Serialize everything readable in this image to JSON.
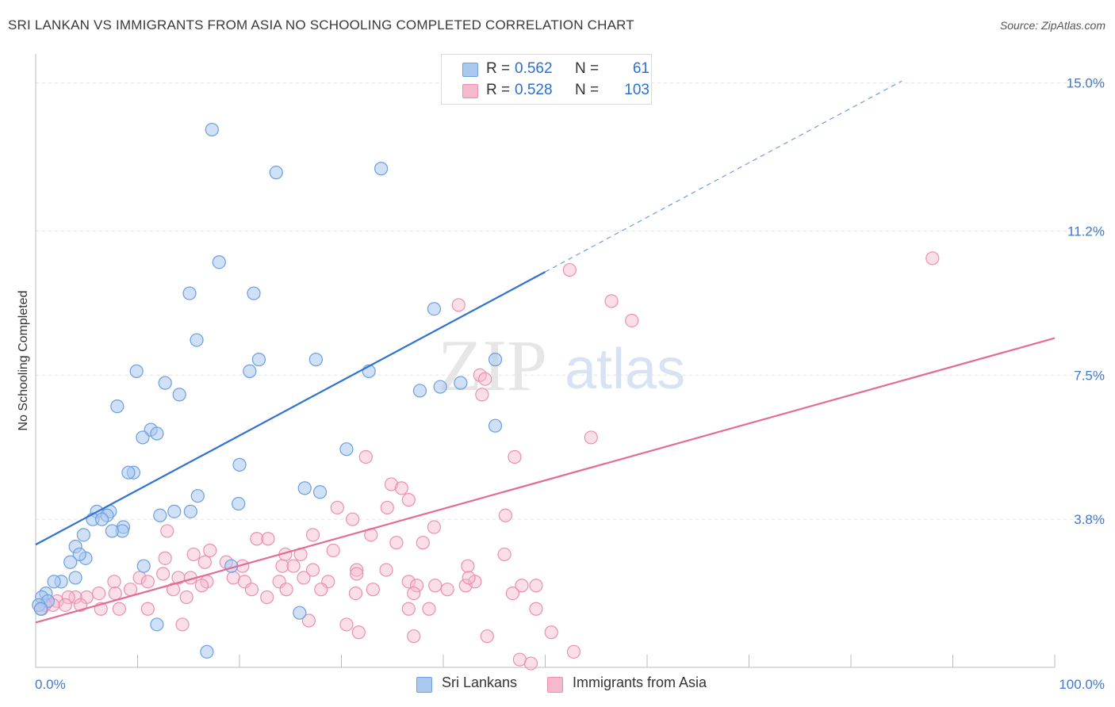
{
  "title": "SRI LANKAN VS IMMIGRANTS FROM ASIA NO SCHOOLING COMPLETED CORRELATION CHART",
  "source": "Source: ZipAtlas.com",
  "watermark": {
    "zip": "ZIP",
    "atlas": "atlas"
  },
  "colors": {
    "blue_fill": "#a9c8f0",
    "blue_stroke": "#6a9fe0",
    "blue_line": "#2f72d4",
    "pink_fill": "#f6b8cb",
    "pink_stroke": "#ec8fae",
    "pink_line": "#e46b97",
    "grid": "#e2e2e2",
    "axis_text": "#3f78cc"
  },
  "stats": [
    {
      "r_label": "R =",
      "r_value": "0.562",
      "n_label": "N =",
      "n_value": "61",
      "color": "#a9c8f0",
      "border": "#6a9fe0"
    },
    {
      "r_label": "R =",
      "r_value": "0.528",
      "n_label": "N =",
      "n_value": "103",
      "color": "#f6b8cb",
      "border": "#ec8fae"
    }
  ],
  "legend": [
    {
      "label": "Sri Lankans",
      "color": "#a9c8f0",
      "border": "#6a9fe0"
    },
    {
      "label": "Immigrants from Asia",
      "color": "#f6b8cb",
      "border": "#ec8fae"
    }
  ],
  "chart_data": {
    "type": "scatter",
    "title": "SRI LANKAN VS IMMIGRANTS FROM ASIA NO SCHOOLING COMPLETED CORRELATION CHART",
    "xlabel": "",
    "ylabel": "No Schooling Completed",
    "xlim": [
      0,
      100
    ],
    "ylim": [
      0,
      15.5
    ],
    "x_tick_labels": [
      "0.0%",
      "100.0%"
    ],
    "y_ticks": [
      3.8,
      7.5,
      11.2,
      15.0
    ],
    "y_tick_labels": [
      "3.8%",
      "7.5%",
      "11.2%",
      "15.0%"
    ],
    "grid": true,
    "legend_position": "bottom-center",
    "series": [
      {
        "name": "Sri Lankans",
        "points": [
          [
            17.3,
            13.8
          ],
          [
            23.6,
            12.7
          ],
          [
            33.9,
            12.8
          ],
          [
            18.0,
            10.4
          ],
          [
            15.1,
            9.6
          ],
          [
            21.4,
            9.6
          ],
          [
            39.1,
            9.2
          ],
          [
            15.8,
            8.4
          ],
          [
            21.9,
            7.9
          ],
          [
            27.5,
            7.9
          ],
          [
            45.1,
            7.9
          ],
          [
            21.0,
            7.6
          ],
          [
            9.9,
            7.6
          ],
          [
            32.7,
            7.6
          ],
          [
            12.7,
            7.3
          ],
          [
            41.7,
            7.3
          ],
          [
            39.7,
            7.2
          ],
          [
            14.1,
            7.0
          ],
          [
            37.7,
            7.1
          ],
          [
            8.0,
            6.7
          ],
          [
            11.3,
            6.1
          ],
          [
            11.9,
            6.0
          ],
          [
            10.5,
            5.9
          ],
          [
            45.1,
            6.2
          ],
          [
            30.5,
            5.6
          ],
          [
            20.0,
            5.2
          ],
          [
            9.6,
            5.0
          ],
          [
            9.1,
            5.0
          ],
          [
            26.4,
            4.6
          ],
          [
            27.9,
            4.5
          ],
          [
            15.9,
            4.4
          ],
          [
            19.9,
            4.2
          ],
          [
            13.6,
            4.0
          ],
          [
            15.2,
            4.0
          ],
          [
            12.2,
            3.9
          ],
          [
            7.3,
            4.0
          ],
          [
            6.0,
            4.0
          ],
          [
            7.0,
            3.9
          ],
          [
            5.6,
            3.8
          ],
          [
            6.5,
            3.8
          ],
          [
            8.6,
            3.6
          ],
          [
            8.5,
            3.5
          ],
          [
            7.5,
            3.5
          ],
          [
            4.7,
            3.4
          ],
          [
            3.9,
            3.1
          ],
          [
            4.9,
            2.8
          ],
          [
            4.3,
            2.9
          ],
          [
            3.4,
            2.7
          ],
          [
            10.6,
            2.6
          ],
          [
            19.2,
            2.6
          ],
          [
            3.9,
            2.3
          ],
          [
            2.5,
            2.2
          ],
          [
            1.8,
            2.2
          ],
          [
            1.0,
            1.9
          ],
          [
            0.6,
            1.8
          ],
          [
            1.2,
            1.7
          ],
          [
            0.3,
            1.6
          ],
          [
            0.5,
            1.5
          ],
          [
            25.9,
            1.4
          ],
          [
            11.9,
            1.1
          ],
          [
            16.8,
            0.4
          ]
        ]
      },
      {
        "name": "Immigrants from Asia",
        "points": [
          [
            88.0,
            10.5
          ],
          [
            52.4,
            10.2
          ],
          [
            56.5,
            9.4
          ],
          [
            58.5,
            8.9
          ],
          [
            41.5,
            9.3
          ],
          [
            43.6,
            7.5
          ],
          [
            44.1,
            7.4
          ],
          [
            43.8,
            7.0
          ],
          [
            54.5,
            5.9
          ],
          [
            32.4,
            5.4
          ],
          [
            47.0,
            5.4
          ],
          [
            34.9,
            4.7
          ],
          [
            35.9,
            4.6
          ],
          [
            36.6,
            4.3
          ],
          [
            29.6,
            4.1
          ],
          [
            34.5,
            4.1
          ],
          [
            46.1,
            3.9
          ],
          [
            31.1,
            3.8
          ],
          [
            39.1,
            3.6
          ],
          [
            12.9,
            3.5
          ],
          [
            27.2,
            3.4
          ],
          [
            32.9,
            3.4
          ],
          [
            21.7,
            3.3
          ],
          [
            22.8,
            3.3
          ],
          [
            35.4,
            3.2
          ],
          [
            38.0,
            3.2
          ],
          [
            17.1,
            3.0
          ],
          [
            29.2,
            3.0
          ],
          [
            15.5,
            2.9
          ],
          [
            24.5,
            2.9
          ],
          [
            46.0,
            2.9
          ],
          [
            26.0,
            2.9
          ],
          [
            12.7,
            2.8
          ],
          [
            16.6,
            2.7
          ],
          [
            18.7,
            2.7
          ],
          [
            20.3,
            2.6
          ],
          [
            24.2,
            2.6
          ],
          [
            25.3,
            2.6
          ],
          [
            27.2,
            2.5
          ],
          [
            42.4,
            2.6
          ],
          [
            31.5,
            2.5
          ],
          [
            34.4,
            2.5
          ],
          [
            31.5,
            2.4
          ],
          [
            10.2,
            2.3
          ],
          [
            12.5,
            2.4
          ],
          [
            15.2,
            2.3
          ],
          [
            19.4,
            2.3
          ],
          [
            26.3,
            2.3
          ],
          [
            7.7,
            2.2
          ],
          [
            11.0,
            2.2
          ],
          [
            14.0,
            2.3
          ],
          [
            16.8,
            2.2
          ],
          [
            20.5,
            2.2
          ],
          [
            23.9,
            2.2
          ],
          [
            28.7,
            2.2
          ],
          [
            36.6,
            2.2
          ],
          [
            39.2,
            2.1
          ],
          [
            42.2,
            2.1
          ],
          [
            43.1,
            2.2
          ],
          [
            9.3,
            2.0
          ],
          [
            13.5,
            2.0
          ],
          [
            16.3,
            2.1
          ],
          [
            21.2,
            2.0
          ],
          [
            24.6,
            2.0
          ],
          [
            28.0,
            2.0
          ],
          [
            33.1,
            2.0
          ],
          [
            37.4,
            2.1
          ],
          [
            40.4,
            2.0
          ],
          [
            42.5,
            2.3
          ],
          [
            47.7,
            2.1
          ],
          [
            49.1,
            2.1
          ],
          [
            6.2,
            1.9
          ],
          [
            5.0,
            1.8
          ],
          [
            3.9,
            1.8
          ],
          [
            7.8,
            1.9
          ],
          [
            14.8,
            1.8
          ],
          [
            22.7,
            1.8
          ],
          [
            31.4,
            1.9
          ],
          [
            37.1,
            1.9
          ],
          [
            46.8,
            1.9
          ],
          [
            2.1,
            1.7
          ],
          [
            3.2,
            1.8
          ],
          [
            1.7,
            1.6
          ],
          [
            2.9,
            1.6
          ],
          [
            4.4,
            1.6
          ],
          [
            0.9,
            1.6
          ],
          [
            0.6,
            1.5
          ],
          [
            6.4,
            1.5
          ],
          [
            8.2,
            1.5
          ],
          [
            11.0,
            1.5
          ],
          [
            36.6,
            1.5
          ],
          [
            38.6,
            1.5
          ],
          [
            49.1,
            1.5
          ],
          [
            26.8,
            1.2
          ],
          [
            30.5,
            1.1
          ],
          [
            14.4,
            1.1
          ],
          [
            31.7,
            0.9
          ],
          [
            37.1,
            0.8
          ],
          [
            44.3,
            0.8
          ],
          [
            50.6,
            0.9
          ],
          [
            52.8,
            0.4
          ],
          [
            47.5,
            0.2
          ],
          [
            48.6,
            0.1
          ]
        ]
      }
    ],
    "trendlines": [
      {
        "series": "Sri Lankans",
        "from": [
          0,
          3.15
        ],
        "to": [
          50,
          10.15
        ],
        "dashed_to": [
          85,
          15.05
        ]
      },
      {
        "series": "Immigrants from Asia",
        "from": [
          0,
          1.15
        ],
        "to": [
          100,
          8.45
        ]
      }
    ]
  }
}
